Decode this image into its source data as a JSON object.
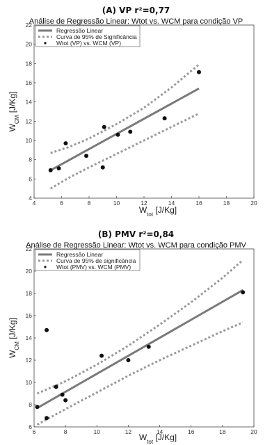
{
  "chart_data": [
    {
      "type": "scatter",
      "panel_label": "(A) VP r²=0,77",
      "title": "Análise de Regressão Linear: Wtot vs. WCM para condição VP",
      "xlabel": {
        "base": "W",
        "sub": "tot",
        "unit": " [J/Kg]"
      },
      "ylabel": {
        "base": "W",
        "sub": "CM",
        "unit": " [J/Kg]"
      },
      "xlim": [
        4,
        20
      ],
      "ylim": [
        4,
        22
      ],
      "xticks": [
        4,
        6,
        8,
        10,
        12,
        14,
        16,
        18,
        20
      ],
      "yticks": [
        4,
        6,
        8,
        10,
        12,
        14,
        16,
        18,
        20,
        22
      ],
      "grid": false,
      "legend_position": "top-left",
      "legend": [
        {
          "label": "Regressão Linear",
          "style": "solid"
        },
        {
          "label": "Curva de 95% de Significância",
          "style": "dotted"
        },
        {
          "label": "Wtot (VP) vs. WCM (VP)",
          "style": "marker"
        }
      ],
      "series": [
        {
          "name": "Wtot (VP) vs. WCM (VP)",
          "kind": "points",
          "x": [
            5.2,
            5.8,
            6.3,
            7.8,
            9.0,
            9.1,
            10.1,
            11.0,
            13.5,
            16.0
          ],
          "y": [
            6.9,
            7.1,
            9.7,
            8.4,
            7.2,
            11.4,
            10.6,
            10.9,
            12.3,
            17.1
          ]
        },
        {
          "name": "Regressão Linear",
          "kind": "line",
          "x": [
            5.2,
            16.0
          ],
          "y": [
            6.9,
            15.4
          ]
        },
        {
          "name": "Curva de 95% de Significância (superior)",
          "kind": "band",
          "x": [
            5.2,
            6.5,
            8,
            10,
            12,
            14,
            16.0
          ],
          "y": [
            8.7,
            9.3,
            10.2,
            11.7,
            13.4,
            15.5,
            17.9
          ]
        },
        {
          "name": "Curva de 95% de Significância (inferior)",
          "kind": "band",
          "x": [
            5.2,
            6.5,
            8,
            10,
            12,
            14,
            16.0
          ],
          "y": [
            5.0,
            6.1,
            7.2,
            8.6,
            10.0,
            11.4,
            12.8
          ]
        }
      ],
      "colors": {
        "regression": "#7a7a7a",
        "band": "#9a9a9a",
        "points": "#111111"
      }
    },
    {
      "type": "scatter",
      "panel_label": "(B) PMV r²=0,84",
      "title": "Análise de Regressão Linear: Wtot vs. WCM para condição PMV",
      "xlabel": {
        "base": "W",
        "sub": "tot",
        "unit": " [J/Kg]"
      },
      "ylabel": {
        "base": "W",
        "sub": "CM",
        "unit": " [J/Kg]"
      },
      "xlim": [
        6,
        20
      ],
      "ylim": [
        6,
        22
      ],
      "xticks": [
        6,
        8,
        10,
        12,
        14,
        16,
        18,
        20
      ],
      "yticks": [
        6,
        8,
        10,
        12,
        14,
        16,
        18,
        20,
        22
      ],
      "grid": false,
      "legend_position": "top-left",
      "legend": [
        {
          "label": "Regressão Linear",
          "style": "solid"
        },
        {
          "label": "Curva de 95% de significância",
          "style": "dotted"
        },
        {
          "label": "Wtot (PMV) vs. WCM (PMV)",
          "style": "marker"
        }
      ],
      "series": [
        {
          "name": "Wtot (PMV) vs. WCM (PMV)",
          "kind": "points",
          "x": [
            6.2,
            6.8,
            6.8,
            7.4,
            7.8,
            8.0,
            10.3,
            12.0,
            13.3,
            19.3
          ],
          "y": [
            7.8,
            6.8,
            14.7,
            9.6,
            8.9,
            8.4,
            12.4,
            12.0,
            13.2,
            18.1
          ]
        },
        {
          "name": "Regressão Linear",
          "kind": "line",
          "x": [
            6.2,
            19.3
          ],
          "y": [
            7.7,
            18.3
          ]
        },
        {
          "name": "Curva de 95% de significância (superior)",
          "kind": "band",
          "x": [
            6.2,
            8,
            10,
            12,
            14,
            16,
            18,
            19.3
          ],
          "y": [
            9.0,
            10.1,
            11.6,
            13.3,
            15.2,
            17.2,
            19.4,
            21.0
          ]
        },
        {
          "name": "Curva de 95% de significância (inferior)",
          "kind": "band",
          "x": [
            6.2,
            8,
            10,
            12,
            14,
            16,
            18,
            19.3
          ],
          "y": [
            6.2,
            7.6,
            9.1,
            10.6,
            12.0,
            13.3,
            14.6,
            15.4
          ]
        }
      ],
      "colors": {
        "regression": "#7a7a7a",
        "band": "#9a9a9a",
        "points": "#111111"
      }
    }
  ]
}
